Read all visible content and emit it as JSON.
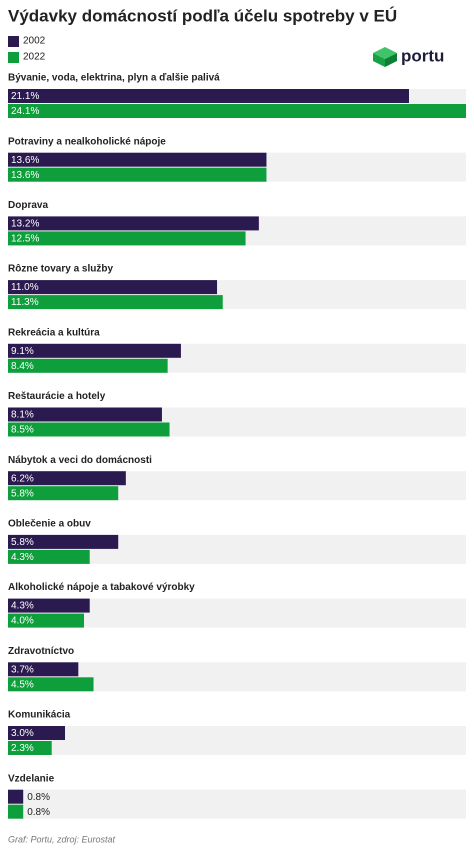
{
  "chart_data": {
    "type": "bar",
    "orientation": "horizontal",
    "title": "Výdavky domácností podľa účelu spotreby v EÚ",
    "logo": "portu",
    "source": "Graf: Portu, zdroj: Eurostat",
    "categories": [
      "Bývanie, voda, elektrina, plyn a ďalšie palivá",
      "Potraviny a nealkoholické nápoje",
      "Doprava",
      "Rôzne tovary a služby",
      "Rekreácia a kultúra",
      "Reštaurácie a hotely",
      "Nábytok a veci do domácnosti",
      "Oblečenie a obuv",
      "Alkoholické nápoje a tabakové výrobky",
      "Zdravotníctvo",
      "Komunikácia",
      "Vzdelanie"
    ],
    "series": [
      {
        "name": "2002",
        "color": "#2b1a50",
        "values": [
          21.1,
          13.6,
          13.2,
          11.0,
          9.1,
          8.1,
          6.2,
          5.8,
          4.3,
          3.7,
          3.0,
          0.8
        ],
        "value_labels": [
          "21.1%",
          "13.6%",
          "13.2%",
          "11.0%",
          "9.1%",
          "8.1%",
          "6.2%",
          "5.8%",
          "4.3%",
          "3.7%",
          "3.0%",
          "0.8%"
        ]
      },
      {
        "name": "2022",
        "color": "#0e9f3c",
        "values": [
          24.1,
          13.6,
          12.5,
          11.3,
          8.4,
          8.5,
          5.8,
          4.3,
          4.0,
          4.5,
          2.3,
          0.8
        ],
        "value_labels": [
          "24.1%",
          "13.6%",
          "12.5%",
          "11.3%",
          "8.4%",
          "8.5%",
          "5.8%",
          "4.3%",
          "4.0%",
          "4.5%",
          "2.3%",
          "0.8%"
        ]
      }
    ]
  }
}
